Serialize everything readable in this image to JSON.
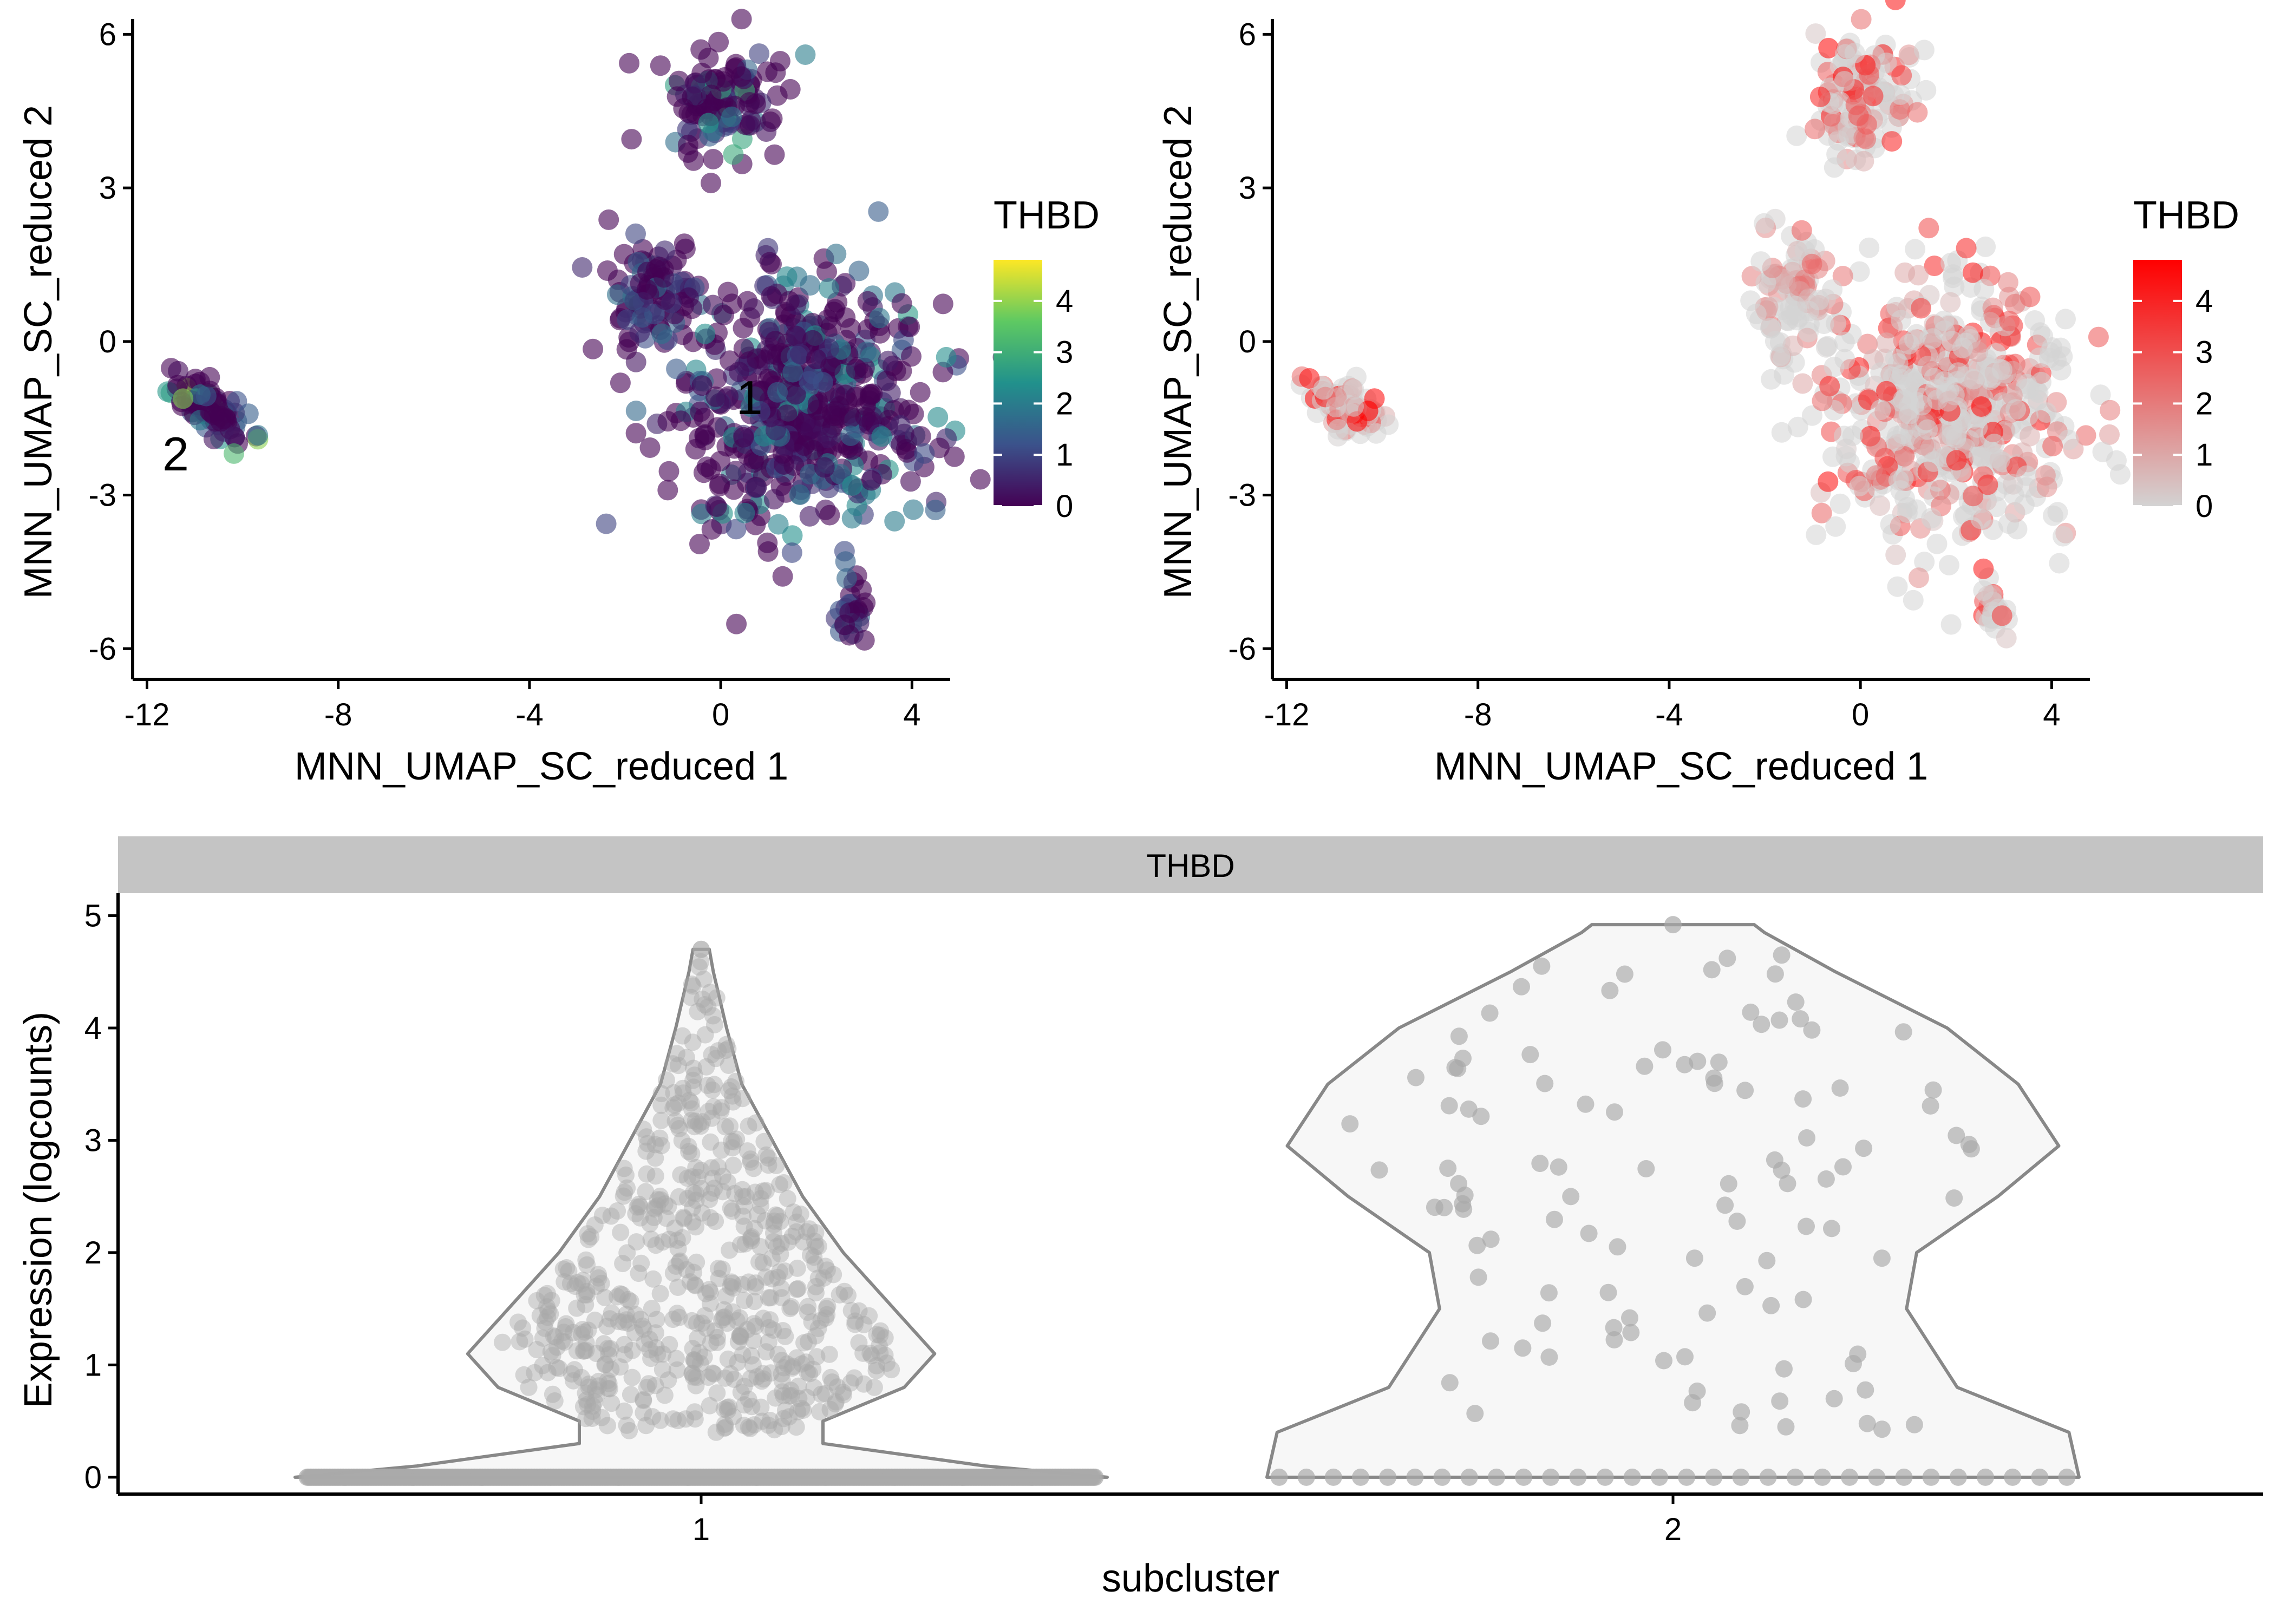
{
  "chart_data": [
    {
      "type": "scatter",
      "panel": "umap-viridis",
      "title": "",
      "xlabel": "MNN_UMAP_SC_reduced 1",
      "ylabel": "MNN_UMAP_SC_reduced 2",
      "xlim": [
        -12.3,
        4.8
      ],
      "ylim": [
        -6.6,
        6.3
      ],
      "xticks": [
        -12,
        -8,
        -4,
        0,
        4
      ],
      "xtick_labels": [
        "-12",
        "-8",
        "-4",
        "0",
        "4"
      ],
      "yticks": [
        -6,
        -3,
        0,
        3,
        6
      ],
      "ytick_labels": [
        "-6",
        "-3",
        "0",
        "3",
        "6"
      ],
      "legend": {
        "title": "THBD",
        "position": "right",
        "range": [
          0,
          4.8
        ],
        "ticks": [
          0,
          1,
          2,
          3,
          4
        ],
        "tick_labels": [
          "0",
          "1",
          "2",
          "3",
          "4"
        ],
        "colors": [
          "#440154",
          "#3b528b",
          "#21918c",
          "#5ec962",
          "#fde725"
        ]
      },
      "cluster_labels": [
        {
          "text": "1",
          "x": 0.6,
          "y": -1.1
        },
        {
          "text": "2",
          "x": -11.4,
          "y": -2.2
        }
      ],
      "clusters": [
        {
          "name": "bottom-left",
          "cx": -10.7,
          "cy": -1.3,
          "sx": 0.45,
          "sy": 0.22,
          "n": 90,
          "rot": -0.55,
          "expr_hi": 0.45
        },
        {
          "name": "top",
          "cx": 0.0,
          "cy": 4.8,
          "sx": 0.55,
          "sy": 0.55,
          "n": 120,
          "rot": 0,
          "expr_hi": 0.3
        },
        {
          "name": "right-main",
          "cx": 1.8,
          "cy": -1.3,
          "sx": 1.3,
          "sy": 1.25,
          "n": 560,
          "rot": 0,
          "expr_hi": 0.2
        },
        {
          "name": "arm-left",
          "cx": -1.4,
          "cy": 0.9,
          "sx": 0.45,
          "sy": 0.6,
          "n": 90,
          "rot": 0,
          "expr_hi": 0.1
        },
        {
          "name": "bottom-tail",
          "cx": 2.8,
          "cy": -5.3,
          "sx": 0.15,
          "sy": 0.3,
          "n": 25,
          "rot": 0,
          "expr_hi": 0.1
        }
      ]
    },
    {
      "type": "scatter",
      "panel": "umap-red",
      "title": "",
      "xlabel": "MNN_UMAP_SC_reduced 1",
      "ylabel": "MNN_UMAP_SC_reduced 2",
      "xlim": [
        -12.3,
        4.8
      ],
      "ylim": [
        -6.6,
        6.3
      ],
      "xticks": [
        -12,
        -8,
        -4,
        0,
        4
      ],
      "xtick_labels": [
        "-12",
        "-8",
        "-4",
        "0",
        "4"
      ],
      "yticks": [
        -6,
        -3,
        0,
        3,
        6
      ],
      "ytick_labels": [
        "-6",
        "-3",
        "0",
        "3",
        "6"
      ],
      "legend": {
        "title": "THBD",
        "position": "right",
        "range": [
          0,
          4.8
        ],
        "ticks": [
          0,
          1,
          2,
          3,
          4
        ],
        "tick_labels": [
          "0",
          "1",
          "2",
          "3",
          "4"
        ],
        "colors": [
          "#d3d3d3",
          "#ff0000"
        ]
      },
      "clusters": [
        {
          "name": "bottom-left",
          "cx": -10.7,
          "cy": -1.3,
          "sx": 0.45,
          "sy": 0.22,
          "n": 90,
          "rot": -0.55,
          "expr_hi": 1.0
        },
        {
          "name": "top",
          "cx": 0.0,
          "cy": 4.8,
          "sx": 0.55,
          "sy": 0.55,
          "n": 120,
          "rot": 0,
          "expr_hi": 0.65
        },
        {
          "name": "right-main",
          "cx": 1.8,
          "cy": -1.3,
          "sx": 1.3,
          "sy": 1.25,
          "n": 560,
          "rot": 0,
          "expr_hi": 0.55
        },
        {
          "name": "arm-left",
          "cx": -1.4,
          "cy": 0.9,
          "sx": 0.45,
          "sy": 0.6,
          "n": 90,
          "rot": 0,
          "expr_hi": 0.25
        },
        {
          "name": "bottom-tail",
          "cx": 2.8,
          "cy": -5.3,
          "sx": 0.15,
          "sy": 0.3,
          "n": 25,
          "rot": 0,
          "expr_hi": 0.6
        }
      ]
    },
    {
      "type": "violin",
      "panel": "violin",
      "strip_label": "THBD",
      "xlabel": "subcluster",
      "ylabel": "Expression (logcounts)",
      "categories": [
        "1",
        "2"
      ],
      "ylim": [
        -0.15,
        5.2
      ],
      "yticks": [
        0,
        1,
        2,
        3,
        4,
        5
      ],
      "ytick_labels": [
        "0",
        "1",
        "2",
        "3",
        "4",
        "5"
      ],
      "violin_color": "#888888",
      "fill_color": "#f7f7f7",
      "point_color": "#a9a9a9",
      "groups": [
        {
          "category": "1",
          "profile": [
            [
              0,
              0.4
            ],
            [
              0.1,
              0.28
            ],
            [
              0.3,
              0.12
            ],
            [
              0.5,
              0.12
            ],
            [
              0.8,
              0.2
            ],
            [
              1.1,
              0.23
            ],
            [
              1.5,
              0.19
            ],
            [
              2.0,
              0.14
            ],
            [
              2.5,
              0.1
            ],
            [
              3.0,
              0.07
            ],
            [
              3.5,
              0.04
            ],
            [
              4.0,
              0.025
            ],
            [
              4.5,
              0.012
            ],
            [
              4.7,
              0.008
            ]
          ],
          "zero_count": 500,
          "points": 620,
          "max": 4.7
        },
        {
          "category": "2",
          "profile": [
            [
              0,
              0.4
            ],
            [
              0.4,
              0.39
            ],
            [
              0.8,
              0.28
            ],
            [
              1.5,
              0.23
            ],
            [
              2.0,
              0.24
            ],
            [
              2.5,
              0.32
            ],
            [
              2.95,
              0.38
            ],
            [
              3.5,
              0.34
            ],
            [
              4.0,
              0.27
            ],
            [
              4.5,
              0.16
            ],
            [
              4.85,
              0.09
            ],
            [
              4.92,
              0.08
            ]
          ],
          "zero_count": 30,
          "points": 110,
          "max": 4.92
        }
      ]
    }
  ]
}
